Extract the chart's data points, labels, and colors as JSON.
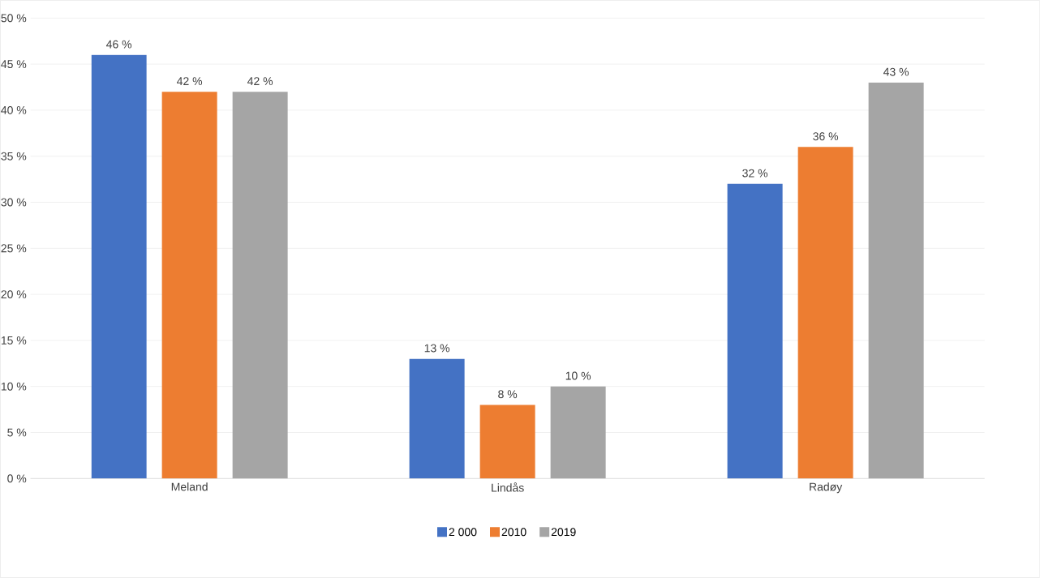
{
  "chart_data": {
    "type": "bar",
    "categories": [
      "Meland",
      "Lindås",
      "Radøy"
    ],
    "series": [
      {
        "name": "2 000",
        "color": "#4472c4",
        "values": [
          46,
          13,
          32
        ],
        "value_labels": [
          "46 %",
          "13 %",
          "32 %"
        ]
      },
      {
        "name": "2010",
        "color": "#ed7d31",
        "values": [
          42,
          8,
          36
        ],
        "value_labels": [
          "42 %",
          "8 %",
          "36 %"
        ]
      },
      {
        "name": "2019",
        "color": "#a5a5a5",
        "values": [
          42,
          10,
          43
        ],
        "value_labels": [
          "42 %",
          "10 %",
          "43 %"
        ]
      }
    ],
    "ylim": [
      0,
      50
    ],
    "yticks": [
      {
        "value": 0,
        "label": "0 %"
      },
      {
        "value": 5,
        "label": "5 %"
      },
      {
        "value": 10,
        "label": "10 %"
      },
      {
        "value": 15,
        "label": "15 %"
      },
      {
        "value": 20,
        "label": "20 %"
      },
      {
        "value": 25,
        "label": "25 %"
      },
      {
        "value": 30,
        "label": "30 %"
      },
      {
        "value": 35,
        "label": "35 %"
      },
      {
        "value": 40,
        "label": "40 %"
      },
      {
        "value": 45,
        "label": "45 %"
      },
      {
        "value": 50,
        "label": "50 %"
      }
    ],
    "grid": "y",
    "legend": "bottom"
  }
}
